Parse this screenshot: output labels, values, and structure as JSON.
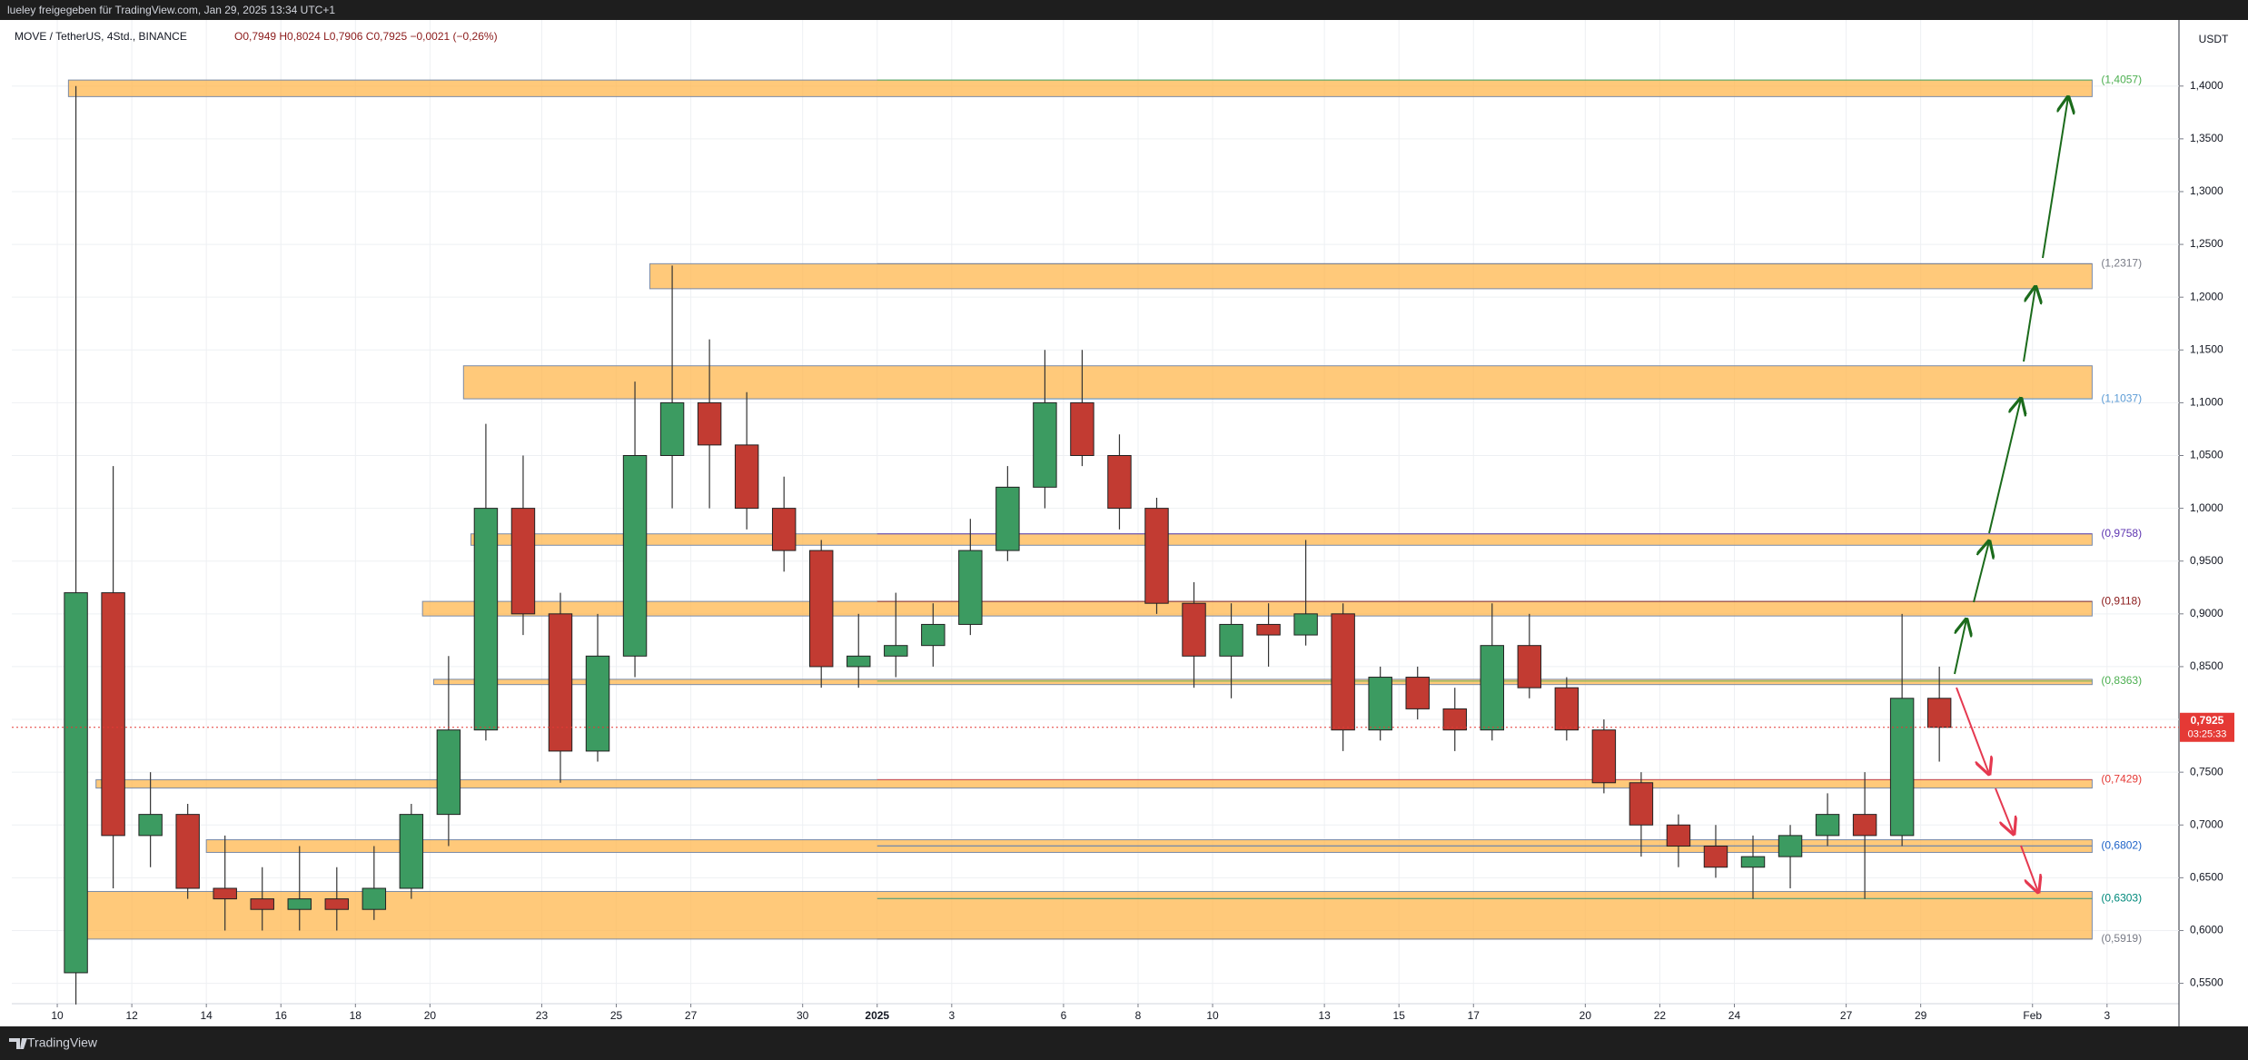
{
  "chart_data": {
    "type": "candlestick",
    "header": "lueley freigegeben für TradingView.com, Jan 29, 2025 13:34 UTC+1",
    "symbol": "MOVE / TetherUS, 4Std., BINANCE",
    "ohlc_text": "O0,7949 H0,8024 L0,7906 C0,7925 −0,0021 (−0,26%)",
    "axis_unit": "USDT",
    "brand": "TradingView",
    "up_color": "#3c9b61",
    "down_color": "#c23b32",
    "grid": true,
    "x": [
      0.5,
      1.5,
      2.5,
      3.5,
      4.5,
      5.5,
      6.5,
      7.5,
      8.5,
      9.5,
      10.5,
      11.5,
      12.5,
      13.5,
      14.5,
      15.5,
      16.5,
      17.5,
      18.5,
      19.5,
      20.5,
      21.5,
      22.5,
      23.5,
      24.5,
      25.5,
      26.5,
      27.5,
      28.5,
      29.5,
      30.5,
      31.5,
      32.5,
      33.5,
      34.5,
      35.5,
      36.5,
      37.5,
      38.5,
      39.5,
      40.5,
      41.5,
      42.5,
      43.5,
      44.5,
      45.5,
      46.5,
      47.5,
      48.5,
      49.5,
      50.5
    ],
    "open": [
      0.56,
      0.92,
      0.69,
      0.71,
      0.64,
      0.63,
      0.62,
      0.63,
      0.62,
      0.64,
      0.71,
      0.79,
      1.0,
      0.9,
      0.77,
      0.86,
      1.05,
      1.1,
      1.06,
      1.0,
      0.96,
      0.85,
      0.86,
      0.87,
      0.89,
      0.96,
      1.02,
      1.1,
      1.05,
      1.0,
      0.91,
      0.86,
      0.89,
      0.88,
      0.9,
      0.79,
      0.84,
      0.81,
      0.79,
      0.87,
      0.83,
      0.79,
      0.74,
      0.7,
      0.68,
      0.66,
      0.67,
      0.69,
      0.71,
      0.69,
      0.82
    ],
    "high": [
      1.4,
      1.04,
      0.75,
      0.72,
      0.69,
      0.66,
      0.68,
      0.66,
      0.68,
      0.72,
      0.86,
      1.08,
      1.05,
      0.92,
      0.9,
      1.12,
      1.23,
      1.16,
      1.11,
      1.03,
      0.97,
      0.9,
      0.92,
      0.91,
      0.99,
      1.04,
      1.15,
      1.15,
      1.07,
      1.01,
      0.93,
      0.91,
      0.91,
      0.97,
      0.91,
      0.85,
      0.85,
      0.83,
      0.91,
      0.9,
      0.84,
      0.8,
      0.75,
      0.71,
      0.7,
      0.69,
      0.7,
      0.73,
      0.75,
      0.9,
      0.85
    ],
    "low": [
      0.53,
      0.64,
      0.66,
      0.63,
      0.6,
      0.6,
      0.6,
      0.6,
      0.61,
      0.63,
      0.68,
      0.78,
      0.88,
      0.74,
      0.76,
      0.84,
      1.0,
      1.0,
      0.98,
      0.94,
      0.83,
      0.83,
      0.84,
      0.85,
      0.88,
      0.95,
      1.0,
      1.04,
      0.98,
      0.9,
      0.83,
      0.82,
      0.85,
      0.87,
      0.77,
      0.78,
      0.8,
      0.77,
      0.78,
      0.82,
      0.78,
      0.73,
      0.67,
      0.66,
      0.65,
      0.63,
      0.64,
      0.68,
      0.63,
      0.68,
      0.76
    ],
    "close": [
      0.92,
      0.69,
      0.71,
      0.64,
      0.63,
      0.62,
      0.63,
      0.62,
      0.64,
      0.71,
      0.79,
      1.0,
      0.9,
      0.77,
      0.86,
      1.05,
      1.1,
      1.06,
      1.0,
      0.96,
      0.85,
      0.86,
      0.87,
      0.89,
      0.96,
      1.02,
      1.1,
      1.05,
      1.0,
      0.91,
      0.86,
      0.89,
      0.88,
      0.9,
      0.79,
      0.84,
      0.81,
      0.79,
      0.87,
      0.83,
      0.79,
      0.74,
      0.7,
      0.68,
      0.66,
      0.67,
      0.69,
      0.71,
      0.69,
      0.82,
      0.7925
    ],
    "last_price": 0.7925,
    "last_price_label": "0,7925",
    "countdown": "03:25:33",
    "zones": [
      {
        "top": 1.4057,
        "bottom": 1.39,
        "start": 0.3
      },
      {
        "top": 1.2317,
        "bottom": 1.208,
        "start": 15.9
      },
      {
        "top": 1.135,
        "bottom": 1.1037,
        "start": 10.9
      },
      {
        "top": 0.9758,
        "bottom": 0.965,
        "start": 11.1
      },
      {
        "top": 0.9118,
        "bottom": 0.898,
        "start": 9.8
      },
      {
        "top": 0.838,
        "bottom": 0.833,
        "start": 10.1
      },
      {
        "top": 0.7429,
        "bottom": 0.735,
        "start": 1.04
      },
      {
        "top": 0.686,
        "bottom": 0.674,
        "start": 4.0
      },
      {
        "top": 0.637,
        "bottom": 0.5919,
        "start": 0.8
      }
    ],
    "zone_end": 54.6,
    "levels": [
      {
        "value": 1.4057,
        "label": "(1,4057)",
        "color": "#4caf50"
      },
      {
        "value": 1.2317,
        "label": "(1,2317)",
        "color": "#787b86"
      },
      {
        "value": 1.1037,
        "label": "(1,1037)",
        "color": "#5b9bd5"
      },
      {
        "value": 0.9758,
        "label": "(0,9758)",
        "color": "#5e35b1"
      },
      {
        "value": 0.9118,
        "label": "(0,9118)",
        "color": "#8b1a1a"
      },
      {
        "value": 0.8363,
        "label": "(0,8363)",
        "color": "#4caf50"
      },
      {
        "value": 0.7429,
        "label": "(0,7429)",
        "color": "#e53935"
      },
      {
        "value": 0.6802,
        "label": "(0,6802)",
        "color": "#1e63c8"
      },
      {
        "value": 0.6303,
        "label": "(0,6303)",
        "color": "#00897b"
      },
      {
        "value": 0.5919,
        "label": "(0,5919)",
        "color": "#787b86"
      }
    ],
    "xlim": [
      -1.22,
      56.93
    ],
    "xticks": [
      {
        "value": 0,
        "label": "10"
      },
      {
        "value": 2,
        "label": "12"
      },
      {
        "value": 4,
        "label": "14"
      },
      {
        "value": 6,
        "label": "16"
      },
      {
        "value": 8,
        "label": "18"
      },
      {
        "value": 10,
        "label": "20"
      },
      {
        "value": 13,
        "label": "23"
      },
      {
        "value": 15,
        "label": "25"
      },
      {
        "value": 17,
        "label": "27"
      },
      {
        "value": 20,
        "label": "30"
      },
      {
        "value": 22,
        "label": "2025"
      },
      {
        "value": 24,
        "label": "3"
      },
      {
        "value": 27,
        "label": "6"
      },
      {
        "value": 29,
        "label": "8"
      },
      {
        "value": 31,
        "label": "10"
      },
      {
        "value": 34,
        "label": "13"
      },
      {
        "value": 36,
        "label": "15"
      },
      {
        "value": 38,
        "label": "17"
      },
      {
        "value": 41,
        "label": "20"
      },
      {
        "value": 43,
        "label": "22"
      },
      {
        "value": 45,
        "label": "24"
      },
      {
        "value": 48,
        "label": "27"
      },
      {
        "value": 50,
        "label": "29"
      },
      {
        "value": 53,
        "label": "Feb"
      },
      {
        "value": 55,
        "label": "3"
      }
    ],
    "ylim": [
      0.5307,
      1.4626
    ],
    "yticks": [
      {
        "value": 0.55,
        "label": "0,5500"
      },
      {
        "value": 0.6,
        "label": "0,6000"
      },
      {
        "value": 0.65,
        "label": "0,6500"
      },
      {
        "value": 0.7,
        "label": "0,7000"
      },
      {
        "value": 0.75,
        "label": "0,7500"
      },
      {
        "value": 0.8,
        "label": "0,8000"
      },
      {
        "value": 0.85,
        "label": "0,8500"
      },
      {
        "value": 0.9,
        "label": "0,9000"
      },
      {
        "value": 0.95,
        "label": "0,9500"
      },
      {
        "value": 1.0,
        "label": "1,0000"
      },
      {
        "value": 1.05,
        "label": "1,0500"
      },
      {
        "value": 1.1,
        "label": "1,1000"
      },
      {
        "value": 1.15,
        "label": "1,1500"
      },
      {
        "value": 1.2,
        "label": "1,2000"
      },
      {
        "value": 1.25,
        "label": "1,2500"
      },
      {
        "value": 1.3,
        "label": "1,3000"
      },
      {
        "value": 1.35,
        "label": "1,3500"
      },
      {
        "value": 1.4,
        "label": "1,4000"
      }
    ]
  }
}
